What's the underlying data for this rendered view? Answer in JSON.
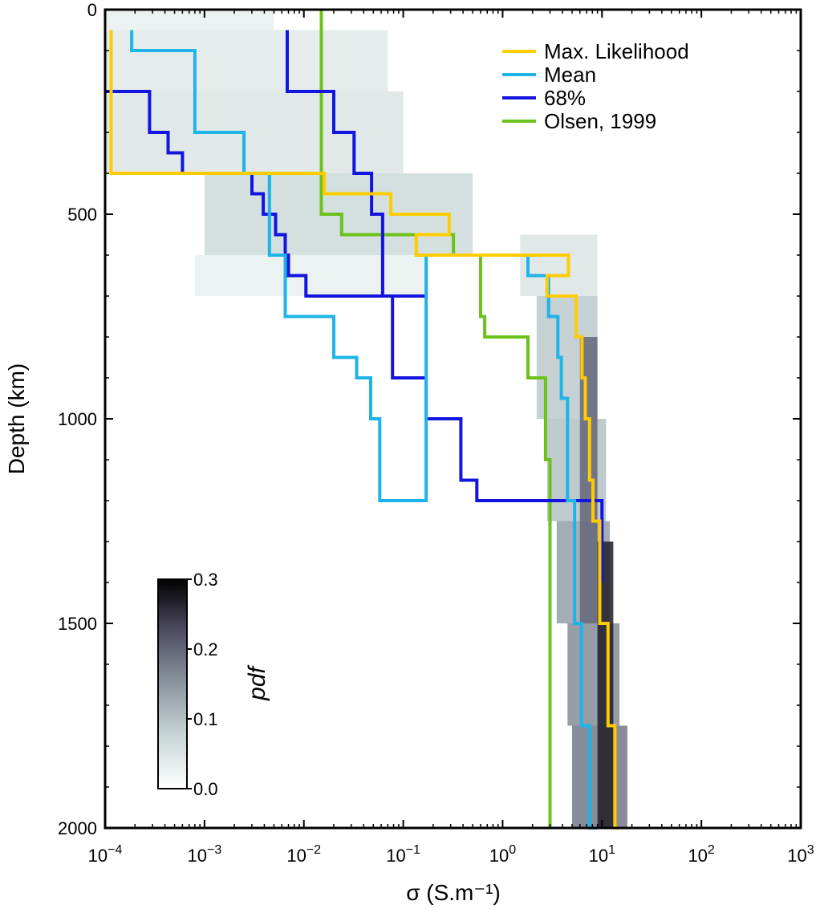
{
  "chart_data": {
    "type": "line",
    "title": "",
    "xlabel": "σ (S.m⁻¹)",
    "ylabel": "Depth (km)",
    "x_scale": "log",
    "xlim": [
      0.0001,
      1000
    ],
    "ylim": [
      0,
      2000
    ],
    "y_inverted": true,
    "x_ticks": [
      {
        "base": "10",
        "exp": "−4",
        "value": 0.0001
      },
      {
        "base": "10",
        "exp": "−3",
        "value": 0.001
      },
      {
        "base": "10",
        "exp": "−2",
        "value": 0.01
      },
      {
        "base": "10",
        "exp": "−1",
        "value": 0.1
      },
      {
        "base": "10",
        "exp": "0",
        "value": 1
      },
      {
        "base": "10",
        "exp": "1",
        "value": 10
      },
      {
        "base": "10",
        "exp": "2",
        "value": 100
      },
      {
        "base": "10",
        "exp": "3",
        "value": 1000
      }
    ],
    "y_ticks": [
      "0",
      "500",
      "1000",
      "1500",
      "2000"
    ],
    "y_tick_values": [
      0,
      500,
      1000,
      1500,
      2000
    ],
    "legend": {
      "position": "top-right"
    },
    "series": [
      {
        "name": "Max. Likelihood",
        "color": "#ffcc00",
        "x": [
          0.000115,
          0.000115,
          0.000115,
          0.016,
          0.016,
          0.075,
          0.075,
          0.29,
          0.29,
          0.135,
          0.135,
          0.34,
          0.34,
          4.6,
          4.6,
          2.8,
          2.8,
          5.5,
          5.5,
          6.3,
          6.3,
          6.8,
          6.8,
          7.5,
          7.5,
          8.1,
          8.1,
          9.5,
          9.5,
          11.5,
          11.5,
          13.5,
          13.5,
          15.0
        ],
        "y": [
          50,
          150,
          400,
          400,
          450,
          450,
          500,
          500,
          550,
          550,
          600,
          600,
          600,
          600,
          650,
          650,
          700,
          700,
          800,
          800,
          900,
          900,
          1000,
          1000,
          1150,
          1150,
          1250,
          1250,
          1500,
          1500,
          1750,
          1750,
          2000,
          2000
        ]
      },
      {
        "name": "Mean",
        "color": "#1eb4e8",
        "x": [
          0.000185,
          0.000185,
          0.0008,
          0.0008,
          0.0025,
          0.0025,
          0.0045,
          0.0045,
          0.0065,
          0.0065,
          0.02,
          0.02,
          0.034,
          0.034,
          0.047,
          0.047,
          0.058,
          0.058,
          0.17,
          0.17,
          1.8,
          1.8,
          2.9,
          2.9,
          3.6,
          3.6,
          3.9,
          3.9,
          4.5,
          4.5,
          5.3,
          5.3,
          6.2,
          6.2,
          7.5,
          7.5,
          8.9,
          8.9
        ],
        "y": [
          50,
          100,
          100,
          300,
          300,
          400,
          400,
          600,
          600,
          750,
          750,
          850,
          850,
          900,
          900,
          1000,
          1000,
          1200,
          1200,
          600,
          600,
          650,
          650,
          750,
          750,
          850,
          850,
          950,
          950,
          1200,
          1200,
          1500,
          1500,
          1750,
          1750,
          2000,
          2000,
          2000
        ]
      },
      {
        "name": "68% (upper)",
        "color": "#1414e0",
        "x": [
          0.0068,
          0.0068,
          0.02,
          0.02,
          0.032,
          0.032,
          0.048,
          0.048,
          0.062,
          0.062,
          0.078,
          0.078,
          0.17,
          0.17,
          0.38,
          0.38,
          0.55,
          0.55,
          10.0,
          10.0
        ],
        "y": [
          50,
          200,
          200,
          300,
          300,
          400,
          400,
          500,
          500,
          700,
          700,
          900,
          900,
          1000,
          1000,
          1150,
          1150,
          1200,
          1200,
          1400
        ]
      },
      {
        "name": "68% (lower)",
        "color": "#1414e0",
        "x": [
          0.0001,
          0.0001,
          0.00028,
          0.00028,
          0.00038,
          0.00038,
          0.00043,
          0.00043,
          0.0006,
          0.0006,
          0.003,
          0.003,
          0.0039,
          0.0039,
          0.0052,
          0.0052,
          0.0065,
          0.0065,
          0.007,
          0.007,
          0.0105,
          0.0105,
          0.17,
          0.17
        ],
        "y": [
          200,
          200,
          200,
          300,
          300,
          300,
          300,
          350,
          350,
          400,
          400,
          450,
          450,
          500,
          500,
          550,
          550,
          600,
          600,
          650,
          650,
          700,
          700,
          700
        ]
      },
      {
        "name": "Olsen, 1999",
        "color": "#6cc21c",
        "x": [
          0.015,
          0.015,
          0.024,
          0.024,
          0.32,
          0.32,
          0.6,
          0.6,
          0.66,
          0.66,
          1.8,
          1.8,
          2.7,
          2.7,
          3.0,
          3.0
        ],
        "y": [
          0,
          500,
          500,
          550,
          550,
          600,
          600,
          750,
          750,
          800,
          800,
          900,
          900,
          1100,
          1100,
          2000
        ]
      }
    ],
    "colorbar": {
      "label": "pdf",
      "ticks": [
        "0.0",
        "0.1",
        "0.2",
        "0.3"
      ],
      "tick_values": [
        0.0,
        0.1,
        0.2,
        0.3
      ],
      "range": [
        0.0,
        0.3
      ]
    },
    "density_bands": [
      {
        "y0": 0,
        "y1": 50,
        "x0": 0.0001,
        "x1": 0.005,
        "pdf": 0.03
      },
      {
        "y0": 50,
        "y1": 200,
        "x0": 0.0001,
        "x1": 0.07,
        "pdf": 0.04
      },
      {
        "y0": 200,
        "y1": 400,
        "x0": 0.0001,
        "x1": 0.1,
        "pdf": 0.05
      },
      {
        "y0": 400,
        "y1": 600,
        "x0": 0.001,
        "x1": 0.5,
        "pdf": 0.07
      },
      {
        "y0": 600,
        "y1": 700,
        "x0": 0.0008,
        "x1": 0.18,
        "pdf": 0.03
      },
      {
        "y0": 550,
        "y1": 700,
        "x0": 1.5,
        "x1": 9,
        "pdf": 0.05
      },
      {
        "y0": 700,
        "y1": 1000,
        "x0": 2.2,
        "x1": 9,
        "pdf": 0.09
      },
      {
        "y0": 1000,
        "y1": 1250,
        "x0": 2.8,
        "x1": 11,
        "pdf": 0.1
      },
      {
        "y0": 1250,
        "y1": 1500,
        "x0": 3.5,
        "x1": 12,
        "pdf": 0.14
      },
      {
        "y0": 1500,
        "y1": 1750,
        "x0": 4.5,
        "x1": 15,
        "pdf": 0.16
      },
      {
        "y0": 1750,
        "y1": 2000,
        "x0": 5,
        "x1": 18,
        "pdf": 0.18
      },
      {
        "y0": 800,
        "y1": 1500,
        "x0": 6,
        "x1": 9,
        "pdf": 0.2
      },
      {
        "y0": 1300,
        "y1": 2000,
        "x0": 9,
        "x1": 13,
        "pdf": 0.27
      }
    ]
  }
}
